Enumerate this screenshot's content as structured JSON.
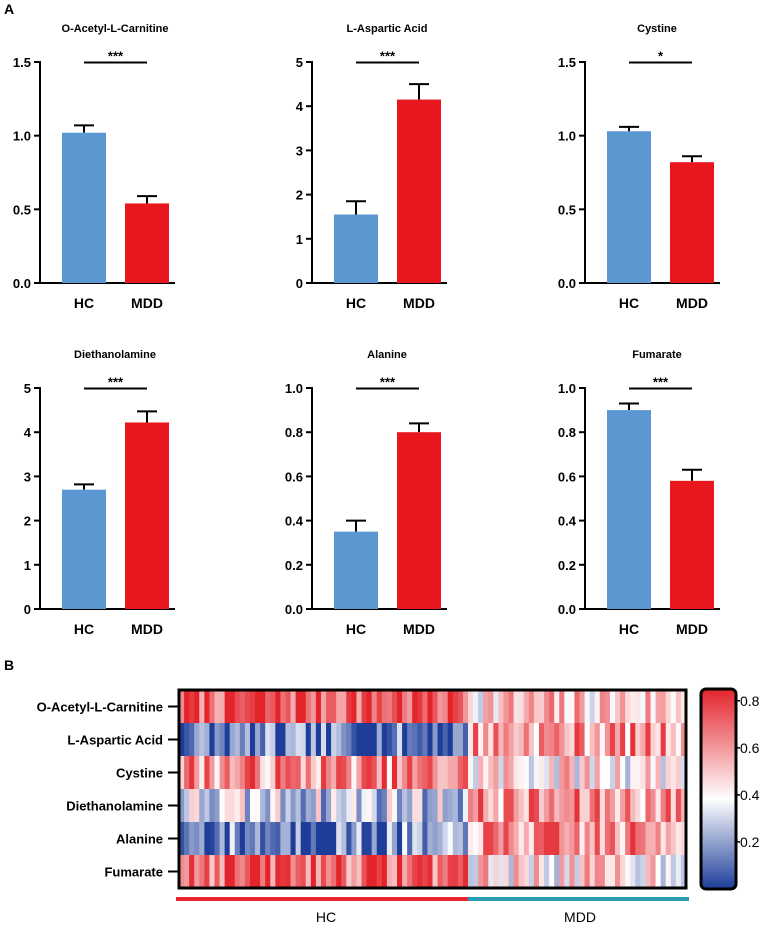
{
  "panels": {
    "A": "A",
    "B": "B"
  },
  "chart_data": [
    {
      "type": "bar",
      "title": "O-Acetyl-L-Carnitine",
      "categories": [
        "HC",
        "MDD"
      ],
      "values": [
        1.02,
        0.54
      ],
      "errors": [
        0.05,
        0.05
      ],
      "ylim": [
        0,
        1.5
      ],
      "yticks": [
        0.0,
        0.5,
        1.0,
        1.5
      ],
      "tick_labels": [
        "0.0",
        "0.5",
        "1.0",
        "1.5"
      ],
      "significance": "***"
    },
    {
      "type": "bar",
      "title": "L-Aspartic Acid",
      "categories": [
        "HC",
        "MDD"
      ],
      "values": [
        1.55,
        4.15
      ],
      "errors": [
        0.3,
        0.35
      ],
      "ylim": [
        0,
        5
      ],
      "yticks": [
        0,
        1,
        2,
        3,
        4,
        5
      ],
      "tick_labels": [
        "0",
        "1",
        "2",
        "3",
        "4",
        "5"
      ],
      "significance": "***"
    },
    {
      "type": "bar",
      "title": "Cystine",
      "categories": [
        "HC",
        "MDD"
      ],
      "values": [
        1.03,
        0.82
      ],
      "errors": [
        0.03,
        0.04
      ],
      "ylim": [
        0,
        1.5
      ],
      "yticks": [
        0.0,
        0.5,
        1.0,
        1.5
      ],
      "tick_labels": [
        "0.0",
        "0.5",
        "1.0",
        "1.5"
      ],
      "significance": "*"
    },
    {
      "type": "bar",
      "title": "Diethanolamine",
      "categories": [
        "HC",
        "MDD"
      ],
      "values": [
        2.7,
        4.22
      ],
      "errors": [
        0.12,
        0.25
      ],
      "ylim": [
        0,
        5
      ],
      "yticks": [
        0,
        1,
        2,
        3,
        4,
        5
      ],
      "tick_labels": [
        "0",
        "1",
        "2",
        "3",
        "4",
        "5"
      ],
      "significance": "***"
    },
    {
      "type": "bar",
      "title": "Alanine",
      "categories": [
        "HC",
        "MDD"
      ],
      "values": [
        0.35,
        0.8
      ],
      "errors": [
        0.05,
        0.04
      ],
      "ylim": [
        0,
        1.0
      ],
      "yticks": [
        0.0,
        0.2,
        0.4,
        0.6,
        0.8,
        1.0
      ],
      "tick_labels": [
        "0.0",
        "0.2",
        "0.4",
        "0.6",
        "0.8",
        "1.0"
      ],
      "significance": "***"
    },
    {
      "type": "bar",
      "title": "Fumarate",
      "categories": [
        "HC",
        "MDD"
      ],
      "values": [
        0.9,
        0.58
      ],
      "errors": [
        0.03,
        0.05
      ],
      "ylim": [
        0,
        1.0
      ],
      "yticks": [
        0.0,
        0.2,
        0.4,
        0.6,
        0.8,
        1.0
      ],
      "tick_labels": [
        "0.0",
        "0.2",
        "0.4",
        "0.6",
        "0.8",
        "1.0"
      ],
      "significance": "***"
    },
    {
      "type": "heatmap",
      "rows": [
        "O-Acetyl-L-Carnitine",
        "L-Aspartic Acid",
        "Cystine",
        "Diethanolamine",
        "Alanine",
        "Fumarate"
      ],
      "groups": [
        "HC",
        "MDD"
      ],
      "group_fractions": [
        0.575,
        0.425
      ],
      "samples": 100,
      "colorbar": {
        "min": 0,
        "max": 0.85,
        "ticks": [
          0.2,
          0.4,
          0.6,
          0.8
        ],
        "tick_labels": [
          "0.2",
          "0.4",
          "0.6",
          "0.8"
        ],
        "colors": [
          "#1d3d99",
          "#ffffff",
          "#e3242b"
        ]
      },
      "row_means": {
        "HC": [
          0.75,
          0.1,
          0.62,
          0.3,
          0.15,
          0.72
        ],
        "MDD": [
          0.5,
          0.6,
          0.45,
          0.6,
          0.6,
          0.45
        ]
      }
    }
  ],
  "colors": {
    "hc": "#5b97d1",
    "mdd": "#e8171e",
    "hc_bar": "#e8232a",
    "mdd_bar": "#2b9bb3"
  }
}
